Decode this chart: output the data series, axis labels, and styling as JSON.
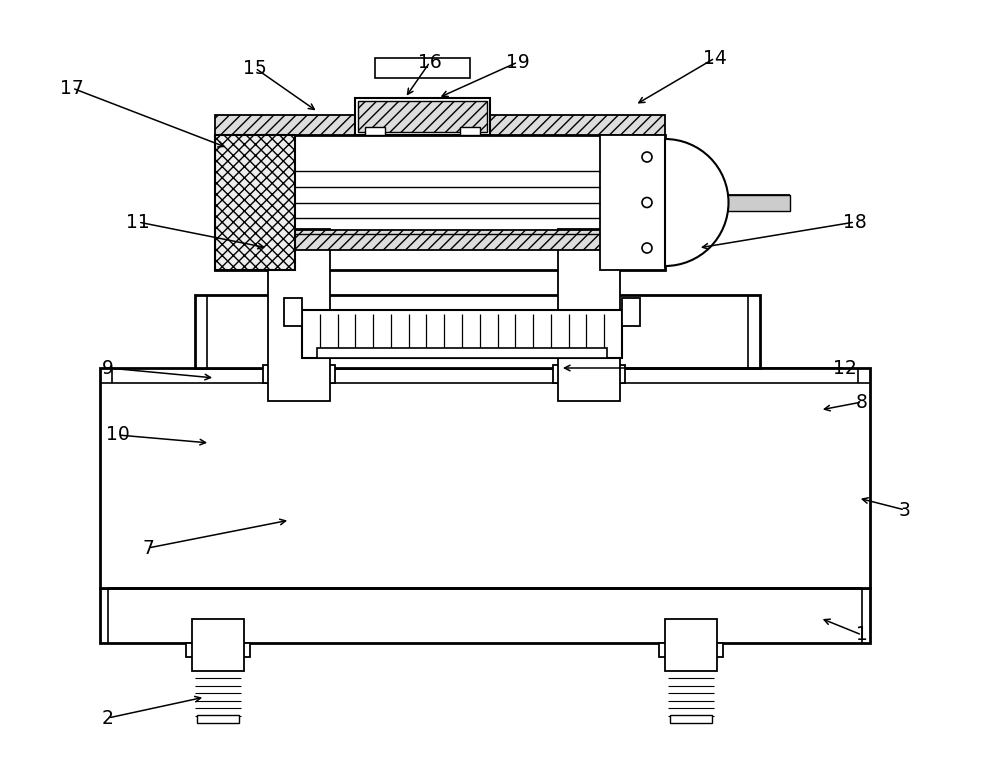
{
  "bg_color": "#ffffff",
  "lc": "#000000",
  "figsize": [
    10.0,
    7.69
  ],
  "dpi": 100,
  "annot": [
    [
      "1",
      862,
      635,
      820,
      618
    ],
    [
      "2",
      108,
      718,
      205,
      697
    ],
    [
      "3",
      905,
      510,
      858,
      498
    ],
    [
      "7",
      148,
      548,
      290,
      520
    ],
    [
      "8",
      862,
      402,
      820,
      410
    ],
    [
      "9",
      108,
      368,
      215,
      378
    ],
    [
      "10",
      118,
      435,
      210,
      443
    ],
    [
      "11",
      138,
      222,
      268,
      248
    ],
    [
      "12",
      845,
      368,
      560,
      368
    ],
    [
      "14",
      715,
      58,
      635,
      105
    ],
    [
      "15",
      255,
      68,
      318,
      112
    ],
    [
      "16",
      430,
      62,
      405,
      98
    ],
    [
      "17",
      72,
      88,
      228,
      148
    ],
    [
      "18",
      855,
      222,
      698,
      248
    ],
    [
      "19",
      518,
      62,
      438,
      98
    ]
  ]
}
